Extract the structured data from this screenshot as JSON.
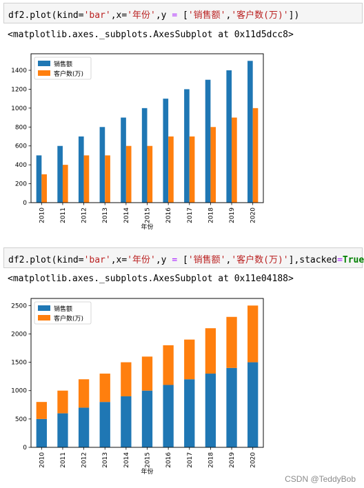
{
  "cells": [
    {
      "code": {
        "prefix": "df2.plot(kind=",
        "kind": "'bar'",
        "mid1": ",x=",
        "x": "'年份'",
        "mid2": ",y ",
        "eq": "=",
        "mid3": " [",
        "y1": "'销售额'",
        "comma": ",",
        "y2": "'客户数(万)'",
        "suffix": "])"
      },
      "output": "<matplotlib.axes._subplots.AxesSubplot at 0x11d5dcc8>"
    },
    {
      "code": {
        "prefix": "df2.plot(kind=",
        "kind": "'bar'",
        "mid1": ",x=",
        "x": "'年份'",
        "mid2": ",y ",
        "eq": "=",
        "mid3": " [",
        "y1": "'销售额'",
        "comma": ",",
        "y2": "'客户数(万)'",
        "mid4": "],stacked",
        "eq2": "=",
        "kw": "True",
        "suffix": ")"
      },
      "output": "<matplotlib.axes._subplots.AxesSubplot at 0x11e04188>"
    }
  ],
  "watermark": "CSDN @TeddyBob",
  "chart_data": [
    {
      "type": "bar",
      "stacked": false,
      "categories": [
        "2010",
        "2011",
        "2012",
        "2013",
        "2014",
        "2015",
        "2016",
        "2017",
        "2018",
        "2019",
        "2020"
      ],
      "series": [
        {
          "name": "销售额",
          "color": "#1f77b4",
          "values": [
            500,
            600,
            700,
            800,
            900,
            1000,
            1100,
            1200,
            1300,
            1400,
            1500
          ]
        },
        {
          "name": "客户数(万)",
          "color": "#ff7f0e",
          "values": [
            300,
            400,
            500,
            500,
            600,
            600,
            700,
            700,
            800,
            900,
            1000
          ]
        }
      ],
      "xlabel": "年份",
      "ylim": [
        0,
        1575
      ],
      "yticks": [
        0,
        200,
        400,
        600,
        800,
        1000,
        1200,
        1400
      ],
      "legend": "top-left"
    },
    {
      "type": "bar",
      "stacked": true,
      "categories": [
        "2010",
        "2011",
        "2012",
        "2013",
        "2014",
        "2015",
        "2016",
        "2017",
        "2018",
        "2019",
        "2020"
      ],
      "series": [
        {
          "name": "销售额",
          "color": "#1f77b4",
          "values": [
            500,
            600,
            700,
            800,
            900,
            1000,
            1100,
            1200,
            1300,
            1400,
            1500
          ]
        },
        {
          "name": "客户数(万)",
          "color": "#ff7f0e",
          "values": [
            300,
            400,
            500,
            500,
            600,
            600,
            700,
            700,
            800,
            900,
            1000
          ]
        }
      ],
      "xlabel": "年份",
      "ylim": [
        0,
        2625
      ],
      "yticks": [
        0,
        500,
        1000,
        1500,
        2000,
        2500
      ],
      "legend": "top-left"
    }
  ]
}
